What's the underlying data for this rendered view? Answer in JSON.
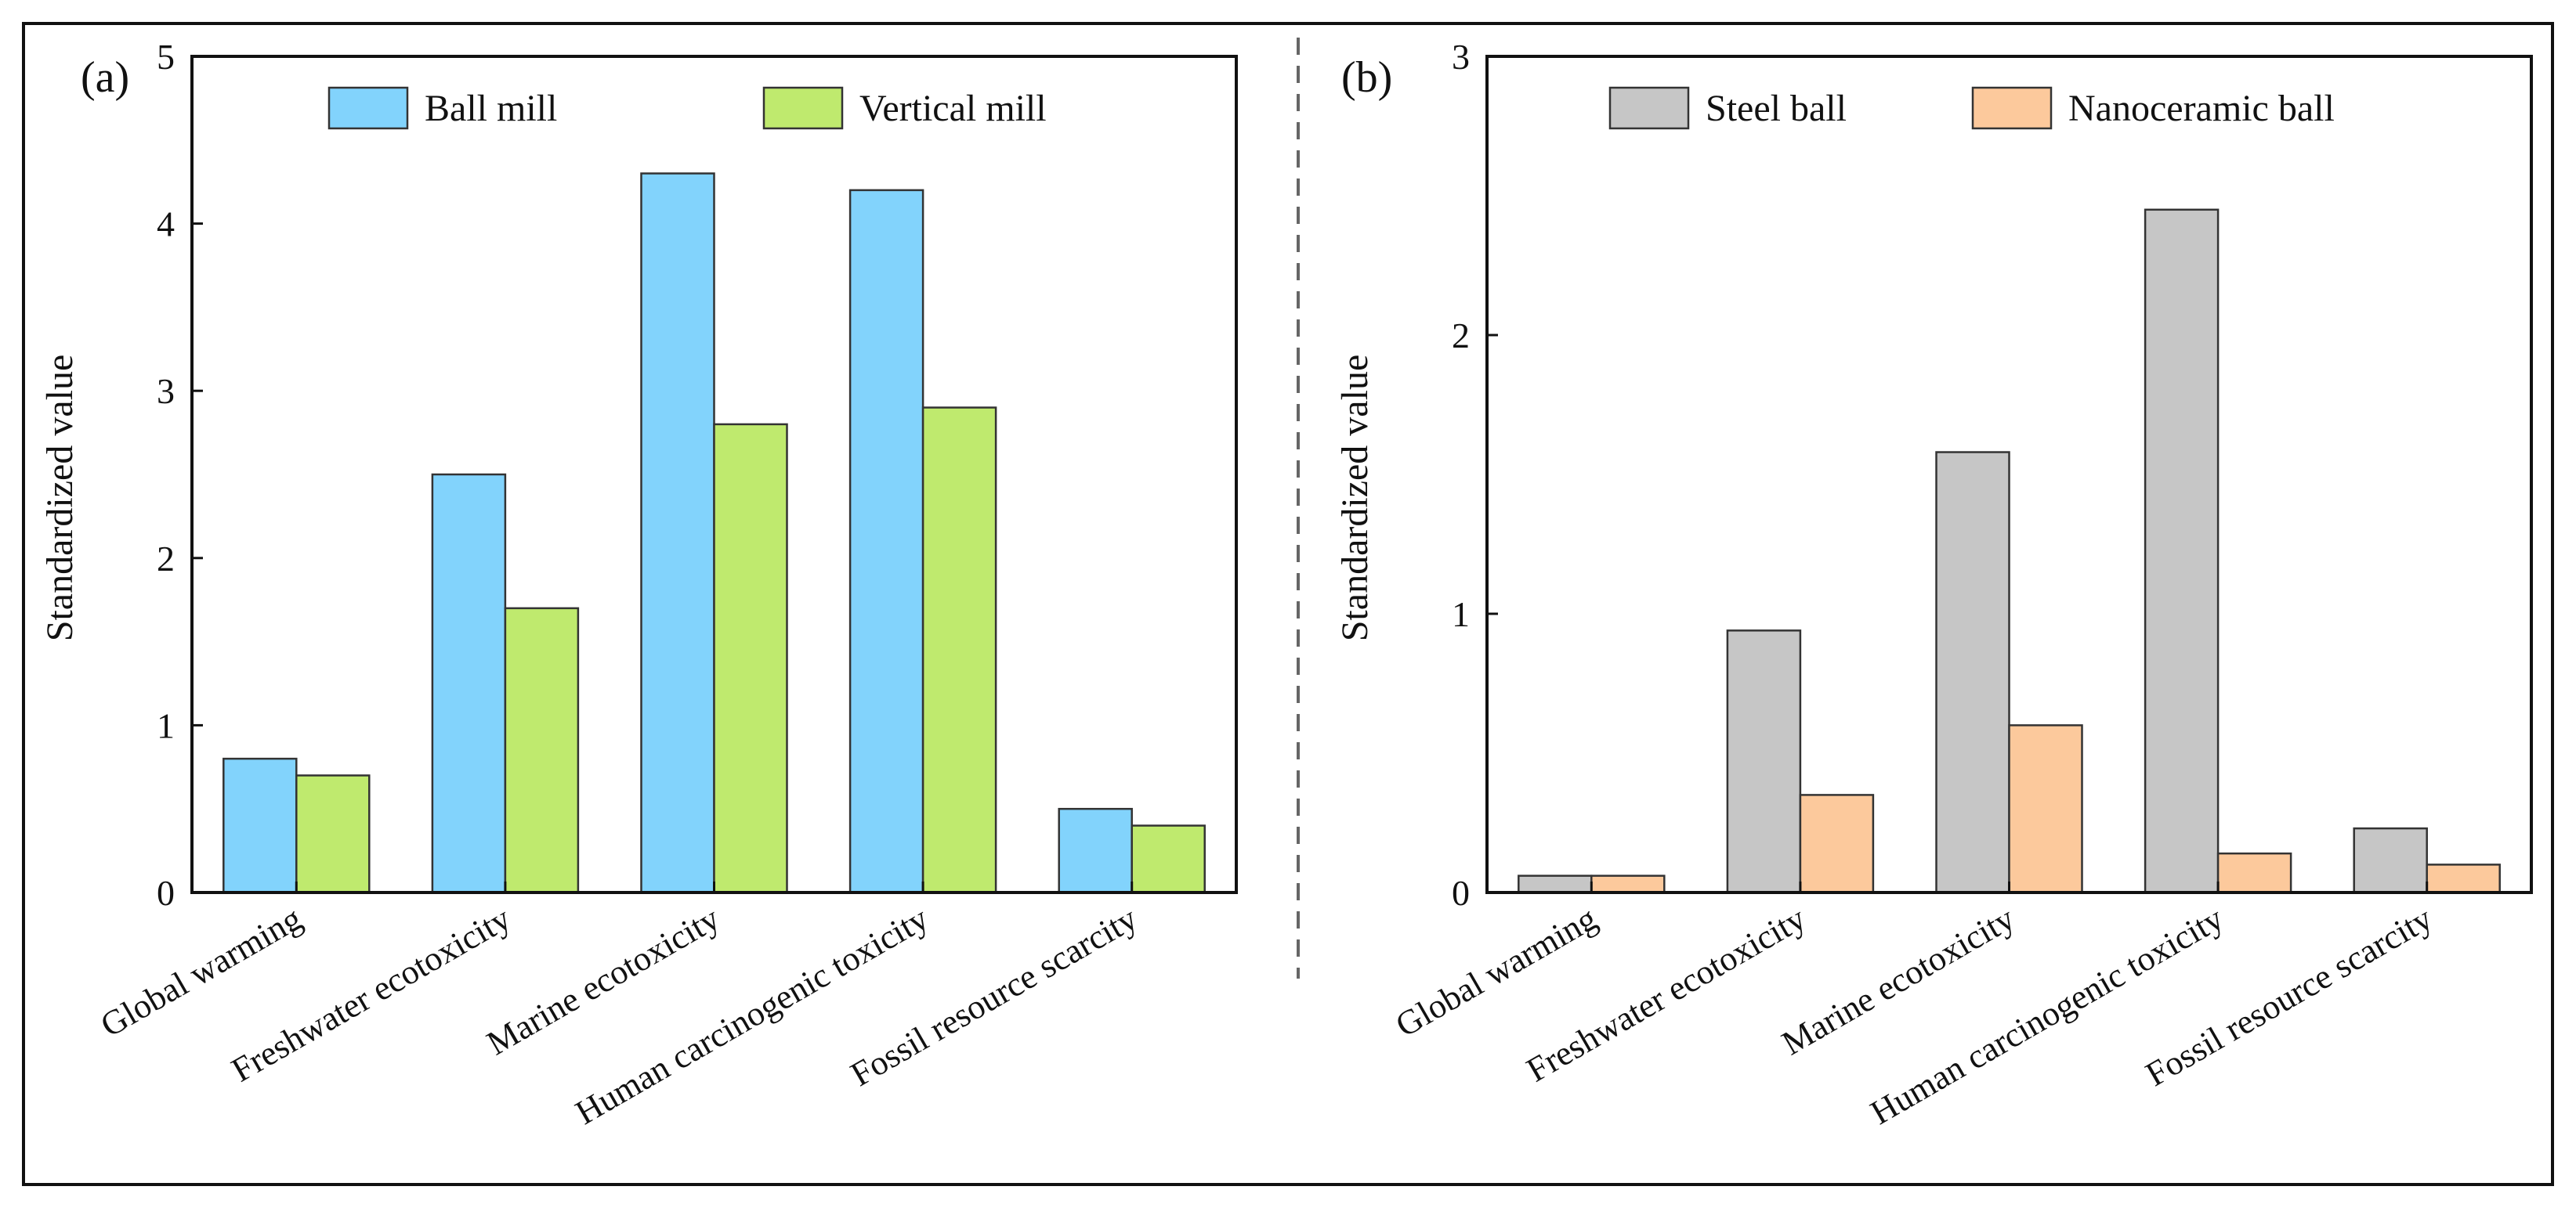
{
  "figure": {
    "colors": {
      "frame": "#111111",
      "divider": "#666666"
    }
  },
  "chart_data": [
    {
      "type": "bar",
      "panel_label": "(a)",
      "ylabel": "Standardized value",
      "xlabel": "",
      "ylim": [
        0,
        5
      ],
      "yticks": [
        "0",
        "1",
        "2",
        "3",
        "4",
        "5"
      ],
      "categories": [
        "Global warming",
        "Freshwater ecotoxicity",
        "Marine ecotoxicity",
        "Human carcinogenic toxicity",
        "Fossil resource scarcity"
      ],
      "series": [
        {
          "name": "Ball mill",
          "color": "#82D3FC",
          "values": [
            0.8,
            2.5,
            4.3,
            4.2,
            0.5
          ]
        },
        {
          "name": "Vertical mill",
          "color": "#BFEA6E",
          "values": [
            0.7,
            1.7,
            2.8,
            2.9,
            0.4
          ]
        }
      ],
      "legend": {
        "placement": "top"
      }
    },
    {
      "type": "bar",
      "panel_label": "(b)",
      "ylabel": "Standardized value",
      "xlabel": "",
      "ylim": [
        0,
        3
      ],
      "yticks": [
        "0",
        "1",
        "2",
        "3"
      ],
      "categories": [
        "Global warming",
        "Freshwater ecotoxicity",
        "Marine ecotoxicity",
        "Human carcinogenic toxicity",
        "Fossil resource scarcity"
      ],
      "series": [
        {
          "name": "Steel ball",
          "color": "#C6C6C6",
          "values": [
            0.06,
            0.94,
            1.58,
            2.45,
            0.23
          ]
        },
        {
          "name": "Nanoceramic ball",
          "color": "#FCC99C",
          "values": [
            0.06,
            0.35,
            0.6,
            0.14,
            0.1
          ]
        }
      ],
      "legend": {
        "placement": "top"
      }
    }
  ]
}
